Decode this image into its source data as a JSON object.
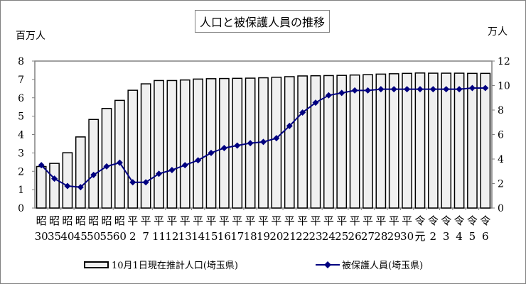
{
  "title": "人口と被保護人員の推移",
  "units": {
    "left": "百万人",
    "right": "万人"
  },
  "legend": {
    "bar": "10月1日現在推計人口(埼玉県)",
    "line": "被保護人員(埼玉県)"
  },
  "colors": {
    "bar_fill": "#f0f0f0",
    "bar_stroke": "#000000",
    "line": "#000080"
  },
  "chart_data": {
    "type": "bar+line",
    "title": "人口と被保護人員の推移",
    "categories_top": [
      "昭",
      "昭",
      "昭",
      "昭",
      "昭",
      "昭",
      "昭",
      "平",
      "平",
      "平",
      "平",
      "平",
      "平",
      "平",
      "平",
      "平",
      "平",
      "平",
      "平",
      "平",
      "平",
      "平",
      "平",
      "平",
      "平",
      "平",
      "平",
      "平",
      "平",
      "令",
      "令",
      "令",
      "令",
      "令",
      "令"
    ],
    "categories_bottom": [
      "30",
      "35",
      "40",
      "45",
      "50",
      "55",
      "60",
      "2",
      "7",
      "11",
      "12",
      "13",
      "14",
      "15",
      "16",
      "17",
      "18",
      "19",
      "20",
      "21",
      "22",
      "23",
      "24",
      "25",
      "26",
      "27",
      "28",
      "29",
      "30",
      "元",
      "2",
      "3",
      "4",
      "5",
      "6"
    ],
    "categories": [
      "昭30",
      "昭35",
      "昭40",
      "昭45",
      "昭50",
      "昭55",
      "昭60",
      "平2",
      "平7",
      "平11",
      "平12",
      "平13",
      "平14",
      "平15",
      "平16",
      "平17",
      "平18",
      "平19",
      "平20",
      "平21",
      "平22",
      "平23",
      "平24",
      "平25",
      "平26",
      "平27",
      "平28",
      "平29",
      "平30",
      "令元",
      "令2",
      "令3",
      "令4",
      "令5",
      "令6"
    ],
    "series": [
      {
        "name": "10月1日現在推計人口(埼玉県)",
        "type": "bar",
        "axis": "left",
        "unit": "百万人",
        "values": [
          2.26,
          2.43,
          3.01,
          3.87,
          4.82,
          5.42,
          5.86,
          6.41,
          6.76,
          6.94,
          6.94,
          6.97,
          7.02,
          7.04,
          7.05,
          7.06,
          7.07,
          7.09,
          7.12,
          7.15,
          7.19,
          7.2,
          7.21,
          7.22,
          7.24,
          7.26,
          7.29,
          7.31,
          7.33,
          7.35,
          7.34,
          7.34,
          7.34,
          7.33,
          7.33
        ]
      },
      {
        "name": "被保護人員(埼玉県)",
        "type": "line",
        "axis": "right",
        "unit": "万人",
        "values": [
          3.5,
          2.4,
          1.8,
          1.7,
          2.7,
          3.4,
          3.7,
          2.1,
          2.1,
          2.8,
          3.1,
          3.5,
          3.9,
          4.5,
          4.9,
          5.1,
          5.3,
          5.4,
          5.7,
          6.7,
          7.8,
          8.6,
          9.2,
          9.4,
          9.6,
          9.6,
          9.7,
          9.7,
          9.7,
          9.7,
          9.7,
          9.7,
          9.7,
          9.8,
          9.8
        ]
      }
    ],
    "y_left": {
      "label": "百万人",
      "ticks": [
        "0",
        "1",
        "2",
        "3",
        "4",
        "5",
        "6",
        "7",
        "8"
      ],
      "range": [
        0,
        8
      ]
    },
    "y_right": {
      "label": "万人",
      "ticks": [
        "0",
        "2",
        "4",
        "6",
        "8",
        "10",
        "12"
      ],
      "range": [
        0,
        12
      ]
    },
    "grid": false,
    "legend_position": "bottom"
  }
}
